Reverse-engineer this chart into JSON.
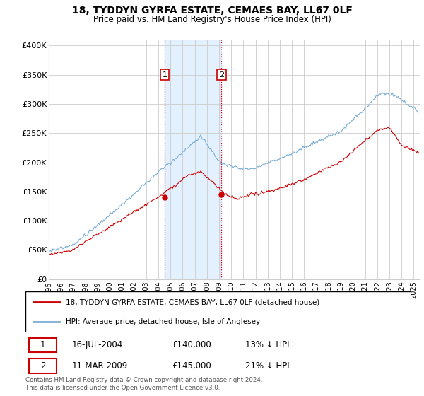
{
  "title": "18, TYDDYN GYRFA ESTATE, CEMAES BAY, LL67 0LF",
  "subtitle": "Price paid vs. HM Land Registry's House Price Index (HPI)",
  "ylabel_ticks": [
    "£0",
    "£50K",
    "£100K",
    "£150K",
    "£200K",
    "£250K",
    "£300K",
    "£350K",
    "£400K"
  ],
  "ytick_values": [
    0,
    50000,
    100000,
    150000,
    200000,
    250000,
    300000,
    350000,
    400000
  ],
  "ylim": [
    0,
    410000
  ],
  "xlim_start": 1995.0,
  "xlim_end": 2025.5,
  "hpi_color": "#7aadd4",
  "price_color": "#cc0000",
  "marker1_date": 2004.54,
  "marker1_price": 140000,
  "marker2_date": 2009.19,
  "marker2_price": 145000,
  "vline_color": "#cc0000",
  "vline_style": ":",
  "shade_color": "#ddeeff",
  "legend_line1": "18, TYDDYN GYRFA ESTATE, CEMAES BAY, LL67 0LF (detached house)",
  "legend_line2": "HPI: Average price, detached house, Isle of Anglesey",
  "table_row1": [
    "1",
    "16-JUL-2004",
    "£140,000",
    "13% ↓ HPI"
  ],
  "table_row2": [
    "2",
    "11-MAR-2009",
    "£145,000",
    "21% ↓ HPI"
  ],
  "footnote": "Contains HM Land Registry data © Crown copyright and database right 2024.\nThis data is licensed under the Open Government Licence v3.0.",
  "background_color": "#ffffff",
  "grid_color": "#cccccc"
}
